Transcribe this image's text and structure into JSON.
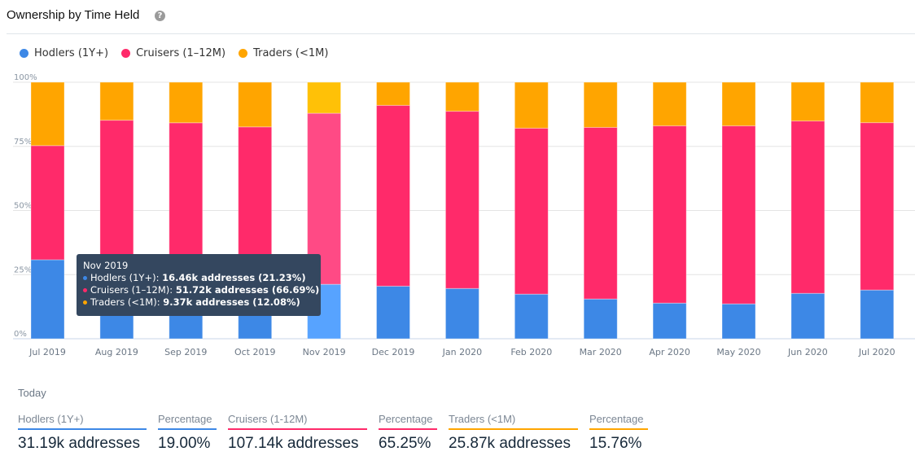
{
  "header": {
    "title": "Ownership by Time Held",
    "help_icon": "question-circle-icon",
    "help_glyph": "?"
  },
  "colors": {
    "hodlers": "#3d88e6",
    "cruisers": "#ff2a6a",
    "traders": "#ffa500",
    "hodlers_hover": "#57a3ff",
    "cruisers_hover": "#ff4a85",
    "traders_hover": "#ffc107"
  },
  "legend": [
    {
      "label": "Hodlers (1Y+)",
      "color": "#3d88e6"
    },
    {
      "label": "Cruisers (1–12M)",
      "color": "#ff2a6a"
    },
    {
      "label": "Traders (<1M)",
      "color": "#ffa500"
    }
  ],
  "chart_data": {
    "type": "bar",
    "stacked": true,
    "normalized": true,
    "title": "Ownership by Time Held",
    "xlabel": "",
    "ylabel": "",
    "ylim": [
      0,
      100
    ],
    "yticks": [
      "0%",
      "25%",
      "50%",
      "75%",
      "100%"
    ],
    "grid": true,
    "legend_position": "top-left",
    "categories": [
      "Jul 2019",
      "Aug 2019",
      "Sep 2019",
      "Oct 2019",
      "Nov 2019",
      "Dec 2019",
      "Jan 2020",
      "Feb 2020",
      "Mar 2020",
      "Apr 2020",
      "May 2020",
      "Jun 2020",
      "Jul 2020"
    ],
    "highlighted_category": "Nov 2019",
    "series": [
      {
        "name": "Hodlers (1Y+)",
        "values": [
          30.8,
          27.0,
          26.0,
          25.0,
          21.23,
          20.5,
          19.6,
          17.4,
          15.5,
          13.9,
          13.6,
          17.7,
          19.0
        ]
      },
      {
        "name": "Cruisers (1–12M)",
        "values": [
          44.5,
          58.2,
          58.2,
          57.6,
          66.69,
          70.5,
          69.1,
          64.7,
          66.9,
          69.1,
          69.4,
          67.2,
          65.25
        ]
      },
      {
        "name": "Traders (<1M)",
        "values": [
          24.7,
          14.8,
          15.8,
          17.4,
          12.08,
          9.0,
          11.3,
          17.9,
          17.6,
          17.0,
          17.0,
          15.1,
          15.76
        ]
      }
    ]
  },
  "tooltip": {
    "title": "Nov 2019",
    "rows": [
      {
        "label": "Hodlers (1Y+): ",
        "value": "16.46k addresses (21.23%)",
        "color": "#3d88e6"
      },
      {
        "label": "Cruisers (1–12M): ",
        "value": "51.72k addresses (66.69%)",
        "color": "#ff2a6a"
      },
      {
        "label": "Traders (<1M): ",
        "value": "9.37k addresses (12.08%)",
        "color": "#ffa500"
      }
    ]
  },
  "today": {
    "label": "Today",
    "stats": [
      {
        "label": "Hodlers (1Y+)",
        "value": "31.19k addresses",
        "color": "#3d88e6"
      },
      {
        "label": "Percentage",
        "value": "19.00%",
        "color": "#3d88e6"
      },
      {
        "label": "Cruisers (1-12M)",
        "value": "107.14k addresses",
        "color": "#ff2a6a"
      },
      {
        "label": "Percentage",
        "value": "65.25%",
        "color": "#ff2a6a"
      },
      {
        "label": "Traders (<1M)",
        "value": "25.87k addresses",
        "color": "#ffa500"
      },
      {
        "label": "Percentage",
        "value": "15.76%",
        "color": "#ffa500"
      }
    ]
  }
}
